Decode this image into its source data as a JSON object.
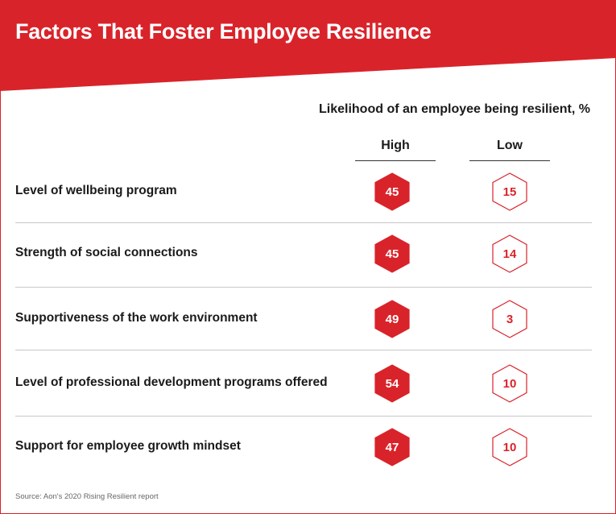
{
  "title": "Factors That Foster Employee Resilience",
  "colors": {
    "accent": "#d9232a",
    "text": "#1a1a1a",
    "rule": "#c8c8c8"
  },
  "chart_data": {
    "type": "table",
    "subtitle": "Likelihood of an employee being resilient, %",
    "columns": [
      "High",
      "Low"
    ],
    "rows": [
      {
        "label": "Level of wellbeing program",
        "high": 45,
        "low": 15
      },
      {
        "label": "Strength of social connections",
        "high": 45,
        "low": 14
      },
      {
        "label": "Supportiveness of the work environment",
        "high": 49,
        "low": 3
      },
      {
        "label": "Level of professional development programs offered",
        "high": 54,
        "low": 10
      },
      {
        "label": "Support for employee growth mindset",
        "high": 47,
        "low": 10
      }
    ]
  },
  "source": "Source: Aon's 2020 Rising Resilient report"
}
